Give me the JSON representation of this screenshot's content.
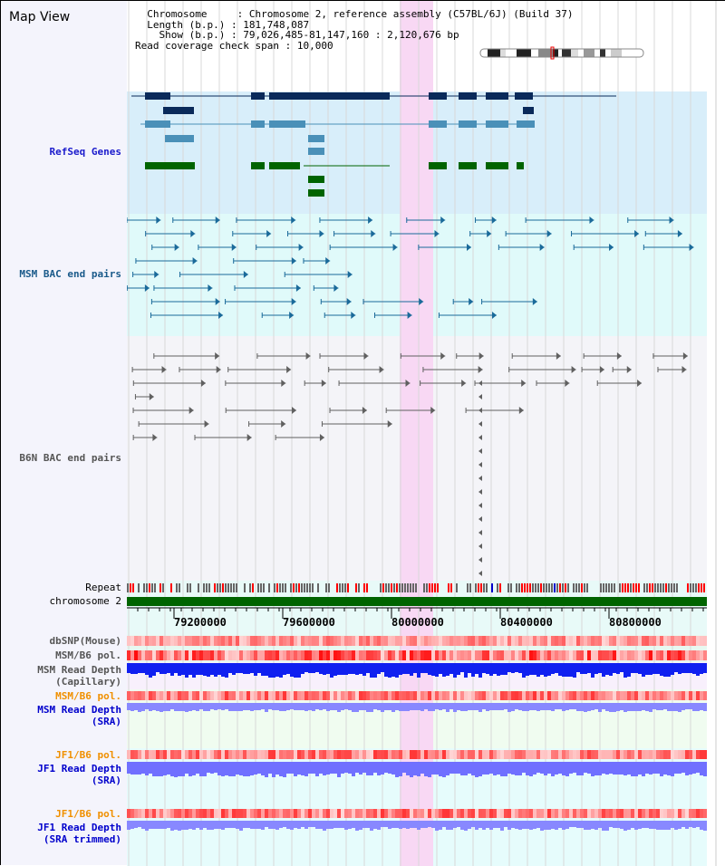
{
  "title": "Map View",
  "info": {
    "chromosome_label": "Chromosome    ",
    "chromosome": "Chromosome 2, reference assembly (C57BL/6J) (Build 37)",
    "length_label": "Length (b.p.)",
    "length": "181,748,087",
    "show_label": "  Show (b.p.)",
    "show": "79,026,485-81,147,160 : 2,120,676 bp",
    "coverage_label": "Read coverage check span",
    "coverage": "10,000"
  },
  "tracks": {
    "refseq": "RefSeq Genes",
    "msm_bac": "MSM BAC end pairs",
    "b6n_bac": "B6N BAC end pairs",
    "repeat": "Repeat",
    "chromosome": "chromosome 2",
    "dbsnp": "dbSNP(Mouse)",
    "msm_pol1": "MSM/B6 pol.",
    "msm_depth_cap1": "MSM Read Depth",
    "msm_depth_cap2": "(Capillary)",
    "msm_pol2": "MSM/B6 pol.",
    "msm_sra1": "MSM Read Depth",
    "msm_sra2": "(SRA)",
    "jf1_pol1": "JF1/B6 pol.",
    "jf1_sra1": "JF1 Read Depth",
    "jf1_sra2": "(SRA)",
    "jf1_pol2": "JF1/B6 pol.",
    "jf1_trim1": "JF1 Read Depth",
    "jf1_trim2": "(SRA trimmed)"
  },
  "axis": {
    "ticks": [
      "79200000",
      "79600000",
      "80000000",
      "80400000",
      "80800000"
    ]
  },
  "colors": {
    "refseq_bg": "#d8eefa",
    "msm_bg": "#e0fafa",
    "b6n_bg": "#f4f4f8",
    "highlight": "#f8d8f4",
    "chrom": "#006400",
    "gene_dark": "#0a2a5a",
    "gene_mid": "#4a90b8",
    "gene_green": "#006400",
    "bac_msm": "#1a6a9a",
    "bac_b6n": "#606060",
    "depth_cap": "#1020f0",
    "depth_sra": "#8888ff",
    "depth_jf1": "#7070ff",
    "label_gray": "#555555",
    "label_orange": "#f09000",
    "label_blue": "#0000cc",
    "label_navy": "#1a1acc"
  }
}
